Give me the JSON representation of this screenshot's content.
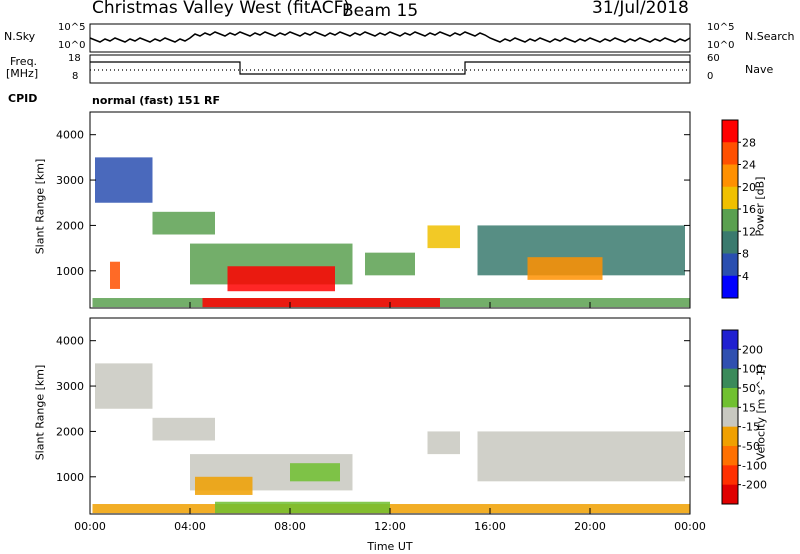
{
  "header": {
    "title": "Christmas Valley West (fitACF)",
    "beam": "Beam 15",
    "date": "31/Jul/2018"
  },
  "summary": {
    "nsky_label": "N.Sky",
    "nsky_ticks": [
      "10^5",
      "10^0"
    ],
    "nsearch_label": "N.Search",
    "nsearch_ticks": [
      "10^5",
      "10^0"
    ],
    "freq_label": "Freq.",
    "freq_unit": "[MHz]",
    "freq_ticks": [
      "18",
      "8"
    ],
    "nave_label": "Nave",
    "nave_ticks": [
      "60",
      "0"
    ],
    "cpid_label": "CPID",
    "cpid_value": "normal (fast) 151 RF"
  },
  "colors": {
    "power_scale": [
      "#0000ff",
      "#2a4fb0",
      "#3a7a6e",
      "#5aa050",
      "#f0c000",
      "#ff9000",
      "#ff5000",
      "#ff0000"
    ],
    "velocity_scale": [
      "#2020d0",
      "#3050b0",
      "#3a8a5a",
      "#70c030",
      "#c8c8c0",
      "#f0a000",
      "#ff7000",
      "#ff3000",
      "#e00000"
    ]
  },
  "chart_data": [
    {
      "type": "heatmap",
      "parameter": "Power",
      "ylabel": "Slant Range [km]",
      "xlabel": "",
      "y_ticks": [
        "1000",
        "2000",
        "3000",
        "4000"
      ],
      "x_ticks": [],
      "colorbar_label": "Power [dB]",
      "colorbar_ticks": [
        "4",
        "8",
        "12",
        "16",
        "20",
        "24",
        "28"
      ],
      "ylim": [
        180,
        4500
      ],
      "xlim": [
        0,
        24
      ],
      "regions": [
        {
          "x0": 0.1,
          "x1": 24.0,
          "y0": 200,
          "y1": 400,
          "level": 3
        },
        {
          "x0": 4.5,
          "x1": 14.0,
          "y0": 200,
          "y1": 400,
          "level": 7
        },
        {
          "x0": 4.0,
          "x1": 10.5,
          "y0": 700,
          "y1": 1600,
          "level": 3
        },
        {
          "x0": 5.5,
          "x1": 9.8,
          "y0": 550,
          "y1": 1100,
          "level": 7
        },
        {
          "x0": 0.8,
          "x1": 1.2,
          "y0": 600,
          "y1": 1200,
          "level": 6
        },
        {
          "x0": 11.0,
          "x1": 13.0,
          "y0": 900,
          "y1": 1400,
          "level": 3
        },
        {
          "x0": 13.5,
          "x1": 14.8,
          "y0": 1500,
          "y1": 2000,
          "level": 4
        },
        {
          "x0": 15.5,
          "x1": 23.8,
          "y0": 900,
          "y1": 2000,
          "level": 2
        },
        {
          "x0": 17.5,
          "x1": 20.5,
          "y0": 800,
          "y1": 1300,
          "level": 5
        },
        {
          "x0": 0.2,
          "x1": 2.5,
          "y0": 2500,
          "y1": 3500,
          "level": 1
        },
        {
          "x0": 2.5,
          "x1": 5.0,
          "y0": 1800,
          "y1": 2300,
          "level": 3
        }
      ]
    },
    {
      "type": "heatmap",
      "parameter": "Velocity",
      "ylabel": "Slant Range [km]",
      "xlabel": "Time UT",
      "y_ticks": [
        "1000",
        "2000",
        "3000",
        "4000"
      ],
      "x_ticks": [
        "00:00",
        "04:00",
        "08:00",
        "12:00",
        "16:00",
        "20:00",
        "00:00"
      ],
      "colorbar_label": "Velocity [m s^-1]",
      "colorbar_ticks": [
        "200",
        "100",
        "50",
        "15",
        "-15",
        "-50",
        "-100",
        "-200"
      ],
      "ylim": [
        180,
        4500
      ],
      "xlim": [
        0,
        24
      ],
      "regions": [
        {
          "x0": 0.1,
          "x1": 24.0,
          "y0": 200,
          "y1": 400,
          "level": 5
        },
        {
          "x0": 5.0,
          "x1": 12.0,
          "y0": 200,
          "y1": 450,
          "level": 3
        },
        {
          "x0": 4.0,
          "x1": 10.5,
          "y0": 700,
          "y1": 1500,
          "level": 4
        },
        {
          "x0": 8.0,
          "x1": 10.0,
          "y0": 900,
          "y1": 1300,
          "level": 3
        },
        {
          "x0": 4.2,
          "x1": 6.5,
          "y0": 600,
          "y1": 1000,
          "level": 5
        },
        {
          "x0": 13.5,
          "x1": 14.8,
          "y0": 1500,
          "y1": 2000,
          "level": 4
        },
        {
          "x0": 15.5,
          "x1": 23.8,
          "y0": 900,
          "y1": 2000,
          "level": 4
        },
        {
          "x0": 0.2,
          "x1": 2.5,
          "y0": 2500,
          "y1": 3500,
          "level": 4
        },
        {
          "x0": 2.5,
          "x1": 5.0,
          "y0": 1800,
          "y1": 2300,
          "level": 4
        }
      ]
    }
  ]
}
